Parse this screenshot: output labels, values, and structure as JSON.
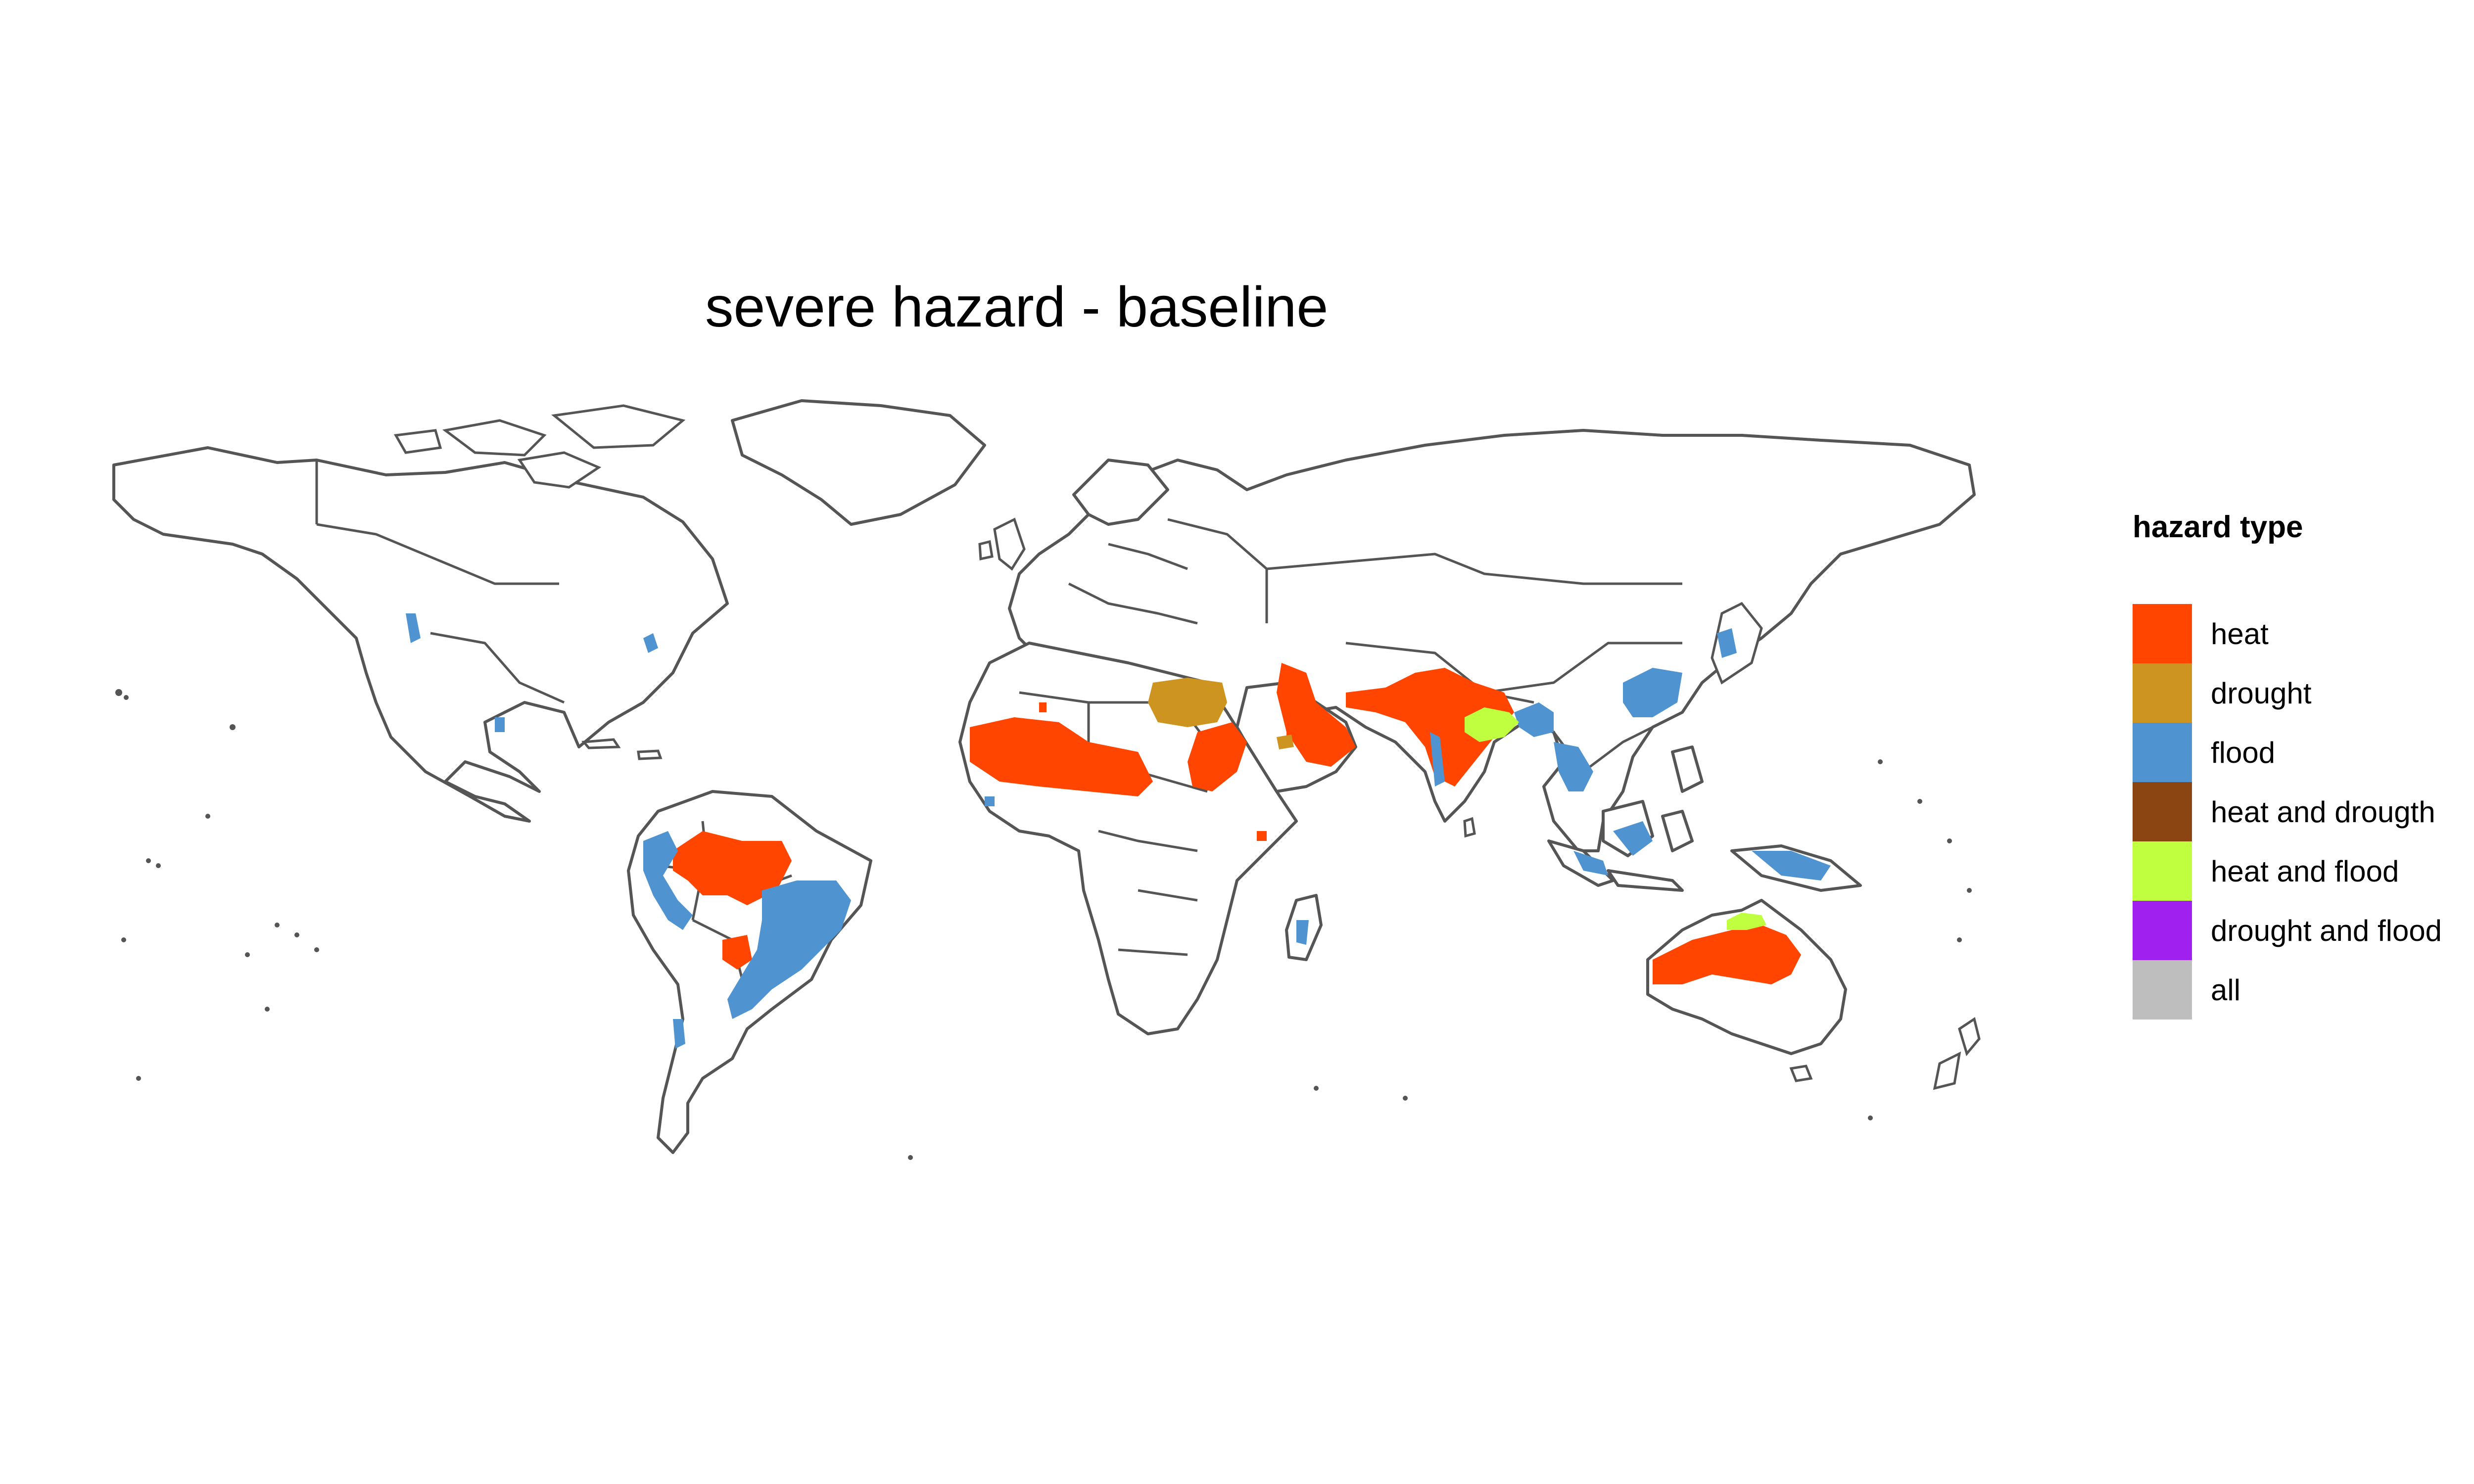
{
  "title": "severe hazard - baseline",
  "legend": {
    "title": "hazard type",
    "items": [
      {
        "label": "heat",
        "color": "#FF4500"
      },
      {
        "label": "drought",
        "color": "#CD9520"
      },
      {
        "label": "flood",
        "color": "#4F94D0"
      },
      {
        "label": "heat and drougth",
        "color": "#8B4513"
      },
      {
        "label": "heat and flood",
        "color": "#BFFF3F"
      },
      {
        "label": "drought and flood",
        "color": "#A020F0"
      },
      {
        "label": "all",
        "color": "#BEBEBE"
      }
    ]
  },
  "hazard_regions": [
    {
      "region": "amazon basin",
      "hazard": "heat"
    },
    {
      "region": "eastern brazil",
      "hazard": "flood"
    },
    {
      "region": "andes / western amazon",
      "hazard": "flood"
    },
    {
      "region": "paraguay / la plata",
      "hazard": "flood"
    },
    {
      "region": "chaco",
      "hazard": "heat"
    },
    {
      "region": "southern chile",
      "hazard": "flood"
    },
    {
      "region": "pacific northwest america",
      "hazard": "flood"
    },
    {
      "region": "florida / gulf coast",
      "hazard": "flood"
    },
    {
      "region": "sahel",
      "hazard": "heat"
    },
    {
      "region": "sudan",
      "hazard": "heat"
    },
    {
      "region": "egypt",
      "hazard": "drought"
    },
    {
      "region": "arabian peninsula",
      "hazard": "heat"
    },
    {
      "region": "iraq / iran coast",
      "hazard": "heat"
    },
    {
      "region": "pakistan / northern india",
      "hazard": "heat"
    },
    {
      "region": "ganges plain",
      "hazard": "heat and flood"
    },
    {
      "region": "bangladesh / assam",
      "hazard": "flood"
    },
    {
      "region": "southern china",
      "hazard": "flood"
    },
    {
      "region": "mekong / southeast asia",
      "hazard": "flood"
    },
    {
      "region": "indonesia / new guinea",
      "hazard": "flood"
    },
    {
      "region": "japan",
      "hazard": "flood"
    },
    {
      "region": "madagascar",
      "hazard": "flood"
    },
    {
      "region": "central australia",
      "hazard": "heat"
    },
    {
      "region": "northern australia",
      "hazard": "heat and flood"
    }
  ]
}
